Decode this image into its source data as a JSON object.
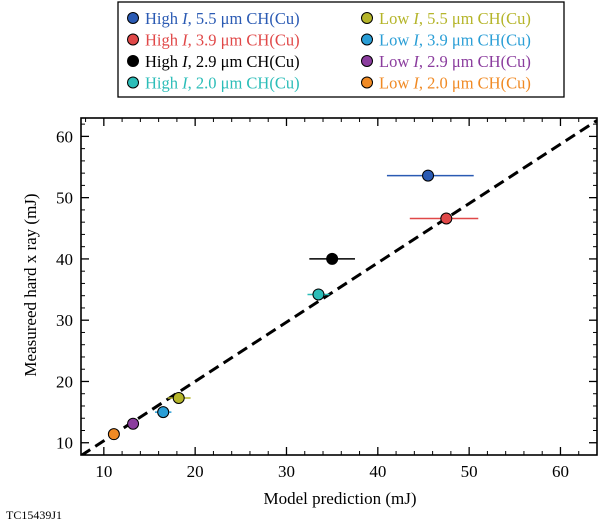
{
  "chart_data": {
    "type": "scatter",
    "title": "",
    "xlabel": "Model prediction (mJ)",
    "ylabel": "Measureed hard x ray (mJ)",
    "xlim": [
      7.5,
      64
    ],
    "ylim": [
      8,
      63
    ],
    "xticks": [
      10,
      20,
      30,
      40,
      50,
      60
    ],
    "yticks": [
      10,
      20,
      30,
      40,
      50,
      60
    ],
    "grid": false,
    "legend_position": "top-center",
    "reference_line": {
      "style": "dashed",
      "color": "#000000",
      "points": [
        [
          7.5,
          7.9
        ],
        [
          64,
          62.6
        ]
      ]
    },
    "series": [
      {
        "name": "High I, 5.5 μm CH(Cu)",
        "prefix": "High ",
        "italic": "I",
        "suffix": ", 5.5 μm CH(Cu)",
        "color": "#2a5ab3",
        "x": 45.5,
        "y": 53.6,
        "xerr": [
          41,
          50.5
        ]
      },
      {
        "name": "High I, 3.9 μm CH(Cu)",
        "prefix": "High ",
        "italic": "I",
        "suffix": ", 3.9 μm CH(Cu)",
        "color": "#e04848",
        "x": 47.5,
        "y": 46.6,
        "xerr": [
          43.5,
          51
        ]
      },
      {
        "name": "High I, 2.9 μm CH(Cu)",
        "prefix": "High ",
        "italic": "I",
        "suffix": ", 2.9 μm CH(Cu)",
        "color": "#000000",
        "x": 35,
        "y": 40,
        "xerr": [
          32.5,
          37.5
        ]
      },
      {
        "name": "High I, 2.0 μm CH(Cu)",
        "prefix": "High ",
        "italic": "I",
        "suffix": ", 2.0 μm CH(Cu)",
        "color": "#2bbdb8",
        "x": 33.5,
        "y": 34.2,
        "xerr": [
          32.3,
          34.7
        ]
      },
      {
        "name": "Low I, 5.5 μm CH(Cu)",
        "prefix": "Low ",
        "italic": "I",
        "suffix": ", 5.5 μm CH(Cu)",
        "color": "#b5b52a",
        "x": 18.2,
        "y": 17.3,
        "xerr": [
          17,
          19.5
        ]
      },
      {
        "name": "Low I, 3.9 μm CH(Cu)",
        "prefix": "Low ",
        "italic": "I",
        "suffix": ", 3.9 μm CH(Cu)",
        "color": "#2a9ed6",
        "x": 16.5,
        "y": 15,
        "xerr": [
          15.6,
          17.4
        ]
      },
      {
        "name": "Low I, 2.9 μm CH(Cu)",
        "prefix": "Low ",
        "italic": "I",
        "suffix": ", 2.9 μm CH(Cu)",
        "color": "#8b3d9e",
        "x": 13.2,
        "y": 13.1,
        "xerr": [
          12.7,
          13.7
        ]
      },
      {
        "name": "Low I, 2.0 μm CH(Cu)",
        "prefix": "Low ",
        "italic": "I",
        "suffix": ", 2.0 μm CH(Cu)",
        "color": "#f08a24",
        "x": 11.1,
        "y": 11.4,
        "xerr": [
          10.8,
          11.4
        ]
      }
    ]
  },
  "figure_id": "TC15439J1"
}
